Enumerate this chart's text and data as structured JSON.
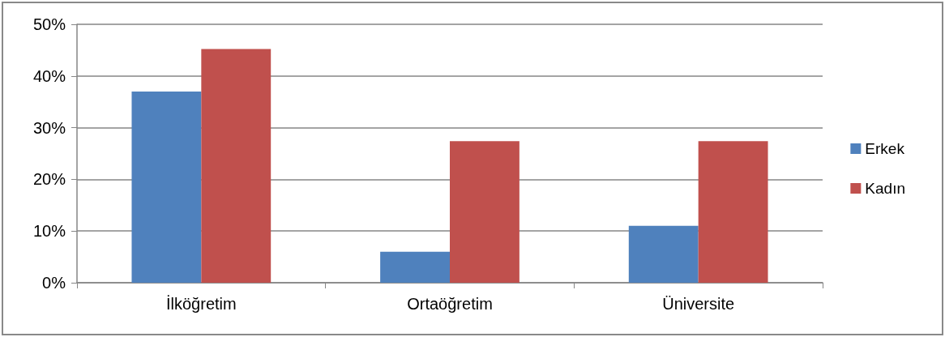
{
  "chart_data": {
    "type": "bar",
    "categories": [
      "İlköğretim",
      "Ortaöğretim",
      "Üniversite"
    ],
    "series": [
      {
        "name": "Erkek",
        "color": "#4f81bd",
        "values": [
          37,
          6,
          11
        ]
      },
      {
        "name": "Kadın",
        "color": "#c0504d",
        "values": [
          45.2,
          27.4,
          27.4
        ]
      }
    ],
    "ylim": [
      0,
      50
    ],
    "yticks": [
      {
        "value": 0,
        "label": "0%"
      },
      {
        "value": 10,
        "label": "10%"
      },
      {
        "value": 20,
        "label": "20%"
      },
      {
        "value": 30,
        "label": "30%"
      },
      {
        "value": 40,
        "label": "40%"
      },
      {
        "value": 50,
        "label": "50%"
      }
    ],
    "grid": "y",
    "legend": "right"
  }
}
